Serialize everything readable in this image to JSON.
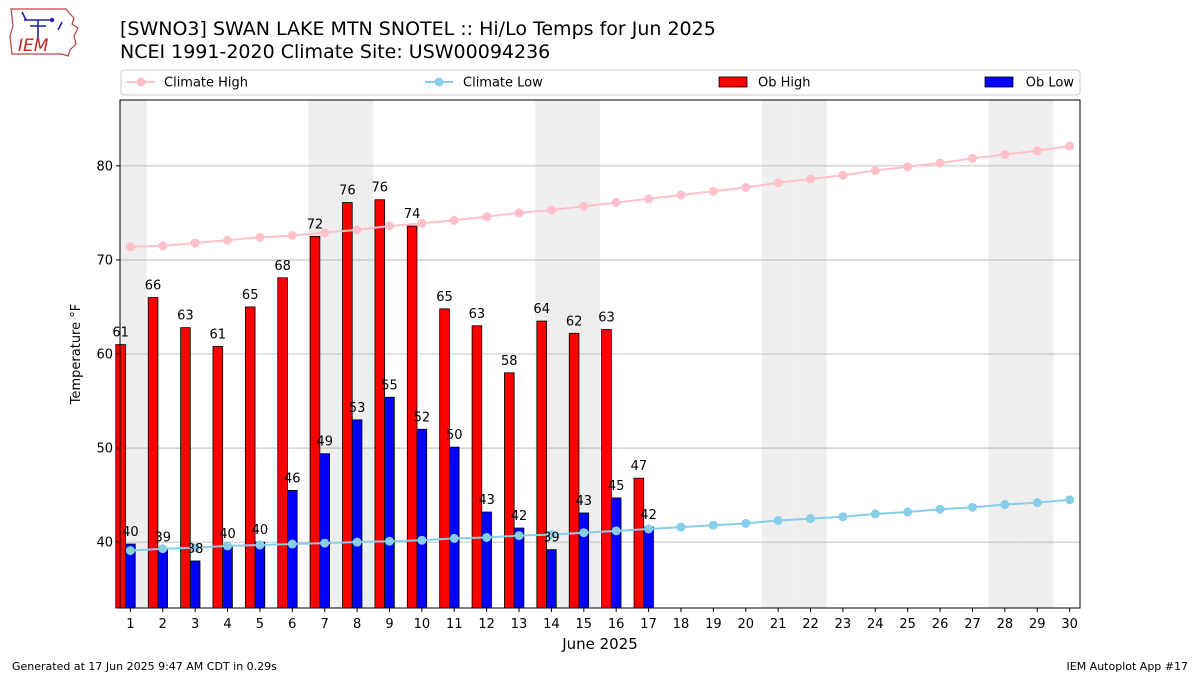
{
  "header": {
    "title_line1": "[SWNO3] SWAN LAKE MTN SNOTEL :: Hi/Lo Temps for Jun 2025",
    "title_line2": "NCEI 1991-2020 Climate Site: USW00094236",
    "logo_text": "IEM"
  },
  "footer": {
    "generated": "Generated at 17 Jun 2025 9:47 AM CDT in 0.29s",
    "app": "IEM Autoplot App #17"
  },
  "colors": {
    "ob_high": "#ff0000",
    "ob_low": "#0000ff",
    "climate_high": "#ffc0cb",
    "climate_low": "#87ceeb",
    "weekend_shade": "#eeeeee",
    "grid": "#b0b0b0"
  },
  "chart_data": {
    "type": "bar",
    "xlabel": "June 2025",
    "ylabel": "Temperature °F",
    "ylim": [
      33,
      87
    ],
    "yticks": [
      40,
      50,
      60,
      70,
      80
    ],
    "grid": "horizontal",
    "legend_position": "top",
    "categories": [
      "1",
      "2",
      "3",
      "4",
      "5",
      "6",
      "7",
      "8",
      "9",
      "10",
      "11",
      "12",
      "13",
      "14",
      "15",
      "16",
      "17",
      "18",
      "19",
      "20",
      "21",
      "22",
      "23",
      "24",
      "25",
      "26",
      "27",
      "28",
      "29",
      "30"
    ],
    "weekend_days": [
      1,
      7,
      8,
      14,
      15,
      21,
      22,
      28,
      29
    ],
    "series": [
      {
        "name": "Climate High",
        "kind": "line",
        "values": [
          71.4,
          71.5,
          71.8,
          72.1,
          72.4,
          72.6,
          72.9,
          73.2,
          73.6,
          73.9,
          74.2,
          74.6,
          75.0,
          75.3,
          75.7,
          76.1,
          76.5,
          76.9,
          77.3,
          77.7,
          78.2,
          78.6,
          79.0,
          79.5,
          79.9,
          80.3,
          80.8,
          81.2,
          81.6,
          82.1
        ]
      },
      {
        "name": "Climate Low",
        "kind": "line",
        "values": [
          39.1,
          39.3,
          39.4,
          39.6,
          39.7,
          39.8,
          39.9,
          40.0,
          40.1,
          40.2,
          40.4,
          40.5,
          40.7,
          40.8,
          41.0,
          41.2,
          41.4,
          41.6,
          41.8,
          42.0,
          42.3,
          42.5,
          42.7,
          43.0,
          43.2,
          43.5,
          43.7,
          44.0,
          44.2,
          44.5
        ]
      },
      {
        "name": "Ob High",
        "kind": "bar",
        "values": [
          61,
          66,
          63,
          61,
          65,
          68,
          72,
          76,
          76,
          74,
          65,
          63,
          58,
          64,
          62,
          63,
          47,
          null,
          null,
          null,
          null,
          null,
          null,
          null,
          null,
          null,
          null,
          null,
          null,
          null
        ],
        "plotted": [
          61.0,
          66.0,
          62.8,
          60.8,
          65.0,
          68.1,
          72.5,
          76.1,
          76.4,
          73.6,
          64.8,
          63.0,
          58.0,
          63.5,
          62.2,
          62.6,
          46.8
        ]
      },
      {
        "name": "Ob Low",
        "kind": "bar",
        "values": [
          40,
          39,
          38,
          40,
          40,
          46,
          49,
          53,
          55,
          52,
          50,
          43,
          42,
          39,
          43,
          45,
          42,
          null,
          null,
          null,
          null,
          null,
          null,
          null,
          null,
          null,
          null,
          null,
          null,
          null
        ],
        "plotted": [
          39.8,
          39.2,
          38.0,
          39.6,
          40.0,
          45.5,
          49.4,
          53.0,
          55.4,
          52.0,
          50.1,
          43.2,
          41.5,
          39.2,
          43.1,
          44.7,
          41.6
        ]
      }
    ]
  }
}
